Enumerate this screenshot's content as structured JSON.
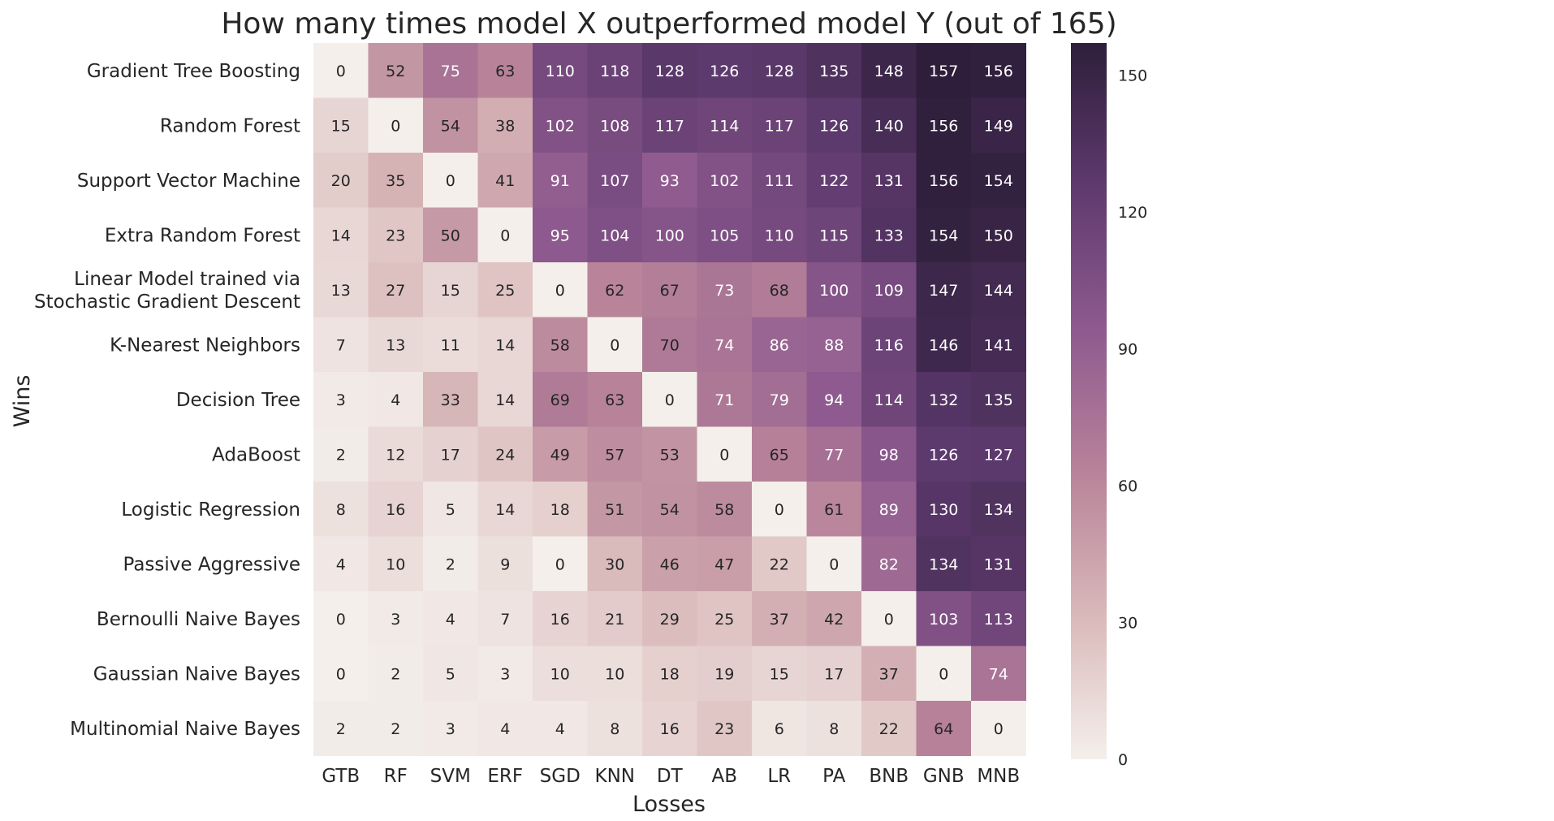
{
  "chart_data": {
    "type": "heatmap",
    "title": "How many times model X outperformed model Y (out of 165)",
    "xlabel": "Losses",
    "ylabel": "Wins",
    "row_labels": [
      [
        "Gradient Tree Boosting"
      ],
      [
        "Random Forest"
      ],
      [
        "Support Vector Machine"
      ],
      [
        "Extra Random Forest"
      ],
      [
        "Linear Model trained via",
        "Stochastic Gradient Descent"
      ],
      [
        "K-Nearest Neighbors"
      ],
      [
        "Decision Tree"
      ],
      [
        "AdaBoost"
      ],
      [
        "Logistic Regression"
      ],
      [
        "Passive Aggressive"
      ],
      [
        "Bernoulli Naive Bayes"
      ],
      [
        "Gaussian Naive Bayes"
      ],
      [
        "Multinomial Naive Bayes"
      ]
    ],
    "col_labels": [
      "GTB",
      "RF",
      "SVM",
      "ERF",
      "SGD",
      "KNN",
      "DT",
      "AB",
      "LR",
      "PA",
      "BNB",
      "GNB",
      "MNB"
    ],
    "values": [
      [
        0,
        52,
        75,
        63,
        110,
        118,
        128,
        126,
        128,
        135,
        148,
        157,
        156
      ],
      [
        15,
        0,
        54,
        38,
        102,
        108,
        117,
        114,
        117,
        126,
        140,
        156,
        149
      ],
      [
        20,
        35,
        0,
        41,
        91,
        107,
        93,
        102,
        111,
        122,
        131,
        156,
        154
      ],
      [
        14,
        23,
        50,
        0,
        95,
        104,
        100,
        105,
        110,
        115,
        133,
        154,
        150
      ],
      [
        13,
        27,
        15,
        25,
        0,
        62,
        67,
        73,
        68,
        100,
        109,
        147,
        144
      ],
      [
        7,
        13,
        11,
        14,
        58,
        0,
        70,
        74,
        86,
        88,
        116,
        146,
        141
      ],
      [
        3,
        4,
        33,
        14,
        69,
        63,
        0,
        71,
        79,
        94,
        114,
        132,
        135
      ],
      [
        2,
        12,
        17,
        24,
        49,
        57,
        53,
        0,
        65,
        77,
        98,
        126,
        127
      ],
      [
        8,
        16,
        5,
        14,
        18,
        51,
        54,
        58,
        0,
        61,
        89,
        130,
        134
      ],
      [
        4,
        10,
        2,
        9,
        0,
        30,
        46,
        47,
        22,
        0,
        82,
        134,
        131
      ],
      [
        0,
        3,
        4,
        7,
        16,
        21,
        29,
        25,
        37,
        42,
        0,
        103,
        113
      ],
      [
        0,
        2,
        5,
        3,
        10,
        10,
        18,
        19,
        15,
        17,
        37,
        0,
        74
      ],
      [
        2,
        2,
        3,
        4,
        4,
        8,
        16,
        23,
        6,
        8,
        22,
        64,
        0
      ]
    ],
    "vmin": 0,
    "vmax": 157,
    "colorbar_ticks": [
      0,
      30,
      60,
      90,
      120,
      150
    ],
    "colormap": [
      "#f4efeb",
      "#d9b9b9",
      "#b88399",
      "#8e5a8f",
      "#5e3a6e",
      "#2e1e3b"
    ]
  }
}
